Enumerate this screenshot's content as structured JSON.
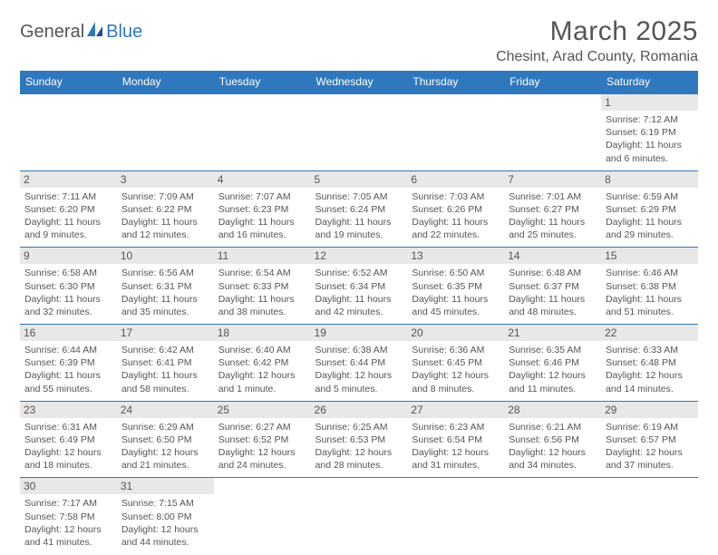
{
  "logo": {
    "part1": "General",
    "part2": "Blue"
  },
  "title": "March 2025",
  "location": "Chesint, Arad County, Romania",
  "colors": {
    "header_bg": "#2f78bd",
    "header_text": "#ffffff",
    "daynum_bg": "#e8e8e8",
    "border": "#2f78bd",
    "text": "#555555",
    "background": "#ffffff"
  },
  "weekdays": [
    "Sunday",
    "Monday",
    "Tuesday",
    "Wednesday",
    "Thursday",
    "Friday",
    "Saturday"
  ],
  "weeks": [
    [
      null,
      null,
      null,
      null,
      null,
      null,
      {
        "n": "1",
        "sr": "Sunrise: 7:12 AM",
        "ss": "Sunset: 6:19 PM",
        "dl": "Daylight: 11 hours and 6 minutes."
      }
    ],
    [
      {
        "n": "2",
        "sr": "Sunrise: 7:11 AM",
        "ss": "Sunset: 6:20 PM",
        "dl": "Daylight: 11 hours and 9 minutes."
      },
      {
        "n": "3",
        "sr": "Sunrise: 7:09 AM",
        "ss": "Sunset: 6:22 PM",
        "dl": "Daylight: 11 hours and 12 minutes."
      },
      {
        "n": "4",
        "sr": "Sunrise: 7:07 AM",
        "ss": "Sunset: 6:23 PM",
        "dl": "Daylight: 11 hours and 16 minutes."
      },
      {
        "n": "5",
        "sr": "Sunrise: 7:05 AM",
        "ss": "Sunset: 6:24 PM",
        "dl": "Daylight: 11 hours and 19 minutes."
      },
      {
        "n": "6",
        "sr": "Sunrise: 7:03 AM",
        "ss": "Sunset: 6:26 PM",
        "dl": "Daylight: 11 hours and 22 minutes."
      },
      {
        "n": "7",
        "sr": "Sunrise: 7:01 AM",
        "ss": "Sunset: 6:27 PM",
        "dl": "Daylight: 11 hours and 25 minutes."
      },
      {
        "n": "8",
        "sr": "Sunrise: 6:59 AM",
        "ss": "Sunset: 6:29 PM",
        "dl": "Daylight: 11 hours and 29 minutes."
      }
    ],
    [
      {
        "n": "9",
        "sr": "Sunrise: 6:58 AM",
        "ss": "Sunset: 6:30 PM",
        "dl": "Daylight: 11 hours and 32 minutes."
      },
      {
        "n": "10",
        "sr": "Sunrise: 6:56 AM",
        "ss": "Sunset: 6:31 PM",
        "dl": "Daylight: 11 hours and 35 minutes."
      },
      {
        "n": "11",
        "sr": "Sunrise: 6:54 AM",
        "ss": "Sunset: 6:33 PM",
        "dl": "Daylight: 11 hours and 38 minutes."
      },
      {
        "n": "12",
        "sr": "Sunrise: 6:52 AM",
        "ss": "Sunset: 6:34 PM",
        "dl": "Daylight: 11 hours and 42 minutes."
      },
      {
        "n": "13",
        "sr": "Sunrise: 6:50 AM",
        "ss": "Sunset: 6:35 PM",
        "dl": "Daylight: 11 hours and 45 minutes."
      },
      {
        "n": "14",
        "sr": "Sunrise: 6:48 AM",
        "ss": "Sunset: 6:37 PM",
        "dl": "Daylight: 11 hours and 48 minutes."
      },
      {
        "n": "15",
        "sr": "Sunrise: 6:46 AM",
        "ss": "Sunset: 6:38 PM",
        "dl": "Daylight: 11 hours and 51 minutes."
      }
    ],
    [
      {
        "n": "16",
        "sr": "Sunrise: 6:44 AM",
        "ss": "Sunset: 6:39 PM",
        "dl": "Daylight: 11 hours and 55 minutes."
      },
      {
        "n": "17",
        "sr": "Sunrise: 6:42 AM",
        "ss": "Sunset: 6:41 PM",
        "dl": "Daylight: 11 hours and 58 minutes."
      },
      {
        "n": "18",
        "sr": "Sunrise: 6:40 AM",
        "ss": "Sunset: 6:42 PM",
        "dl": "Daylight: 12 hours and 1 minute."
      },
      {
        "n": "19",
        "sr": "Sunrise: 6:38 AM",
        "ss": "Sunset: 6:44 PM",
        "dl": "Daylight: 12 hours and 5 minutes."
      },
      {
        "n": "20",
        "sr": "Sunrise: 6:36 AM",
        "ss": "Sunset: 6:45 PM",
        "dl": "Daylight: 12 hours and 8 minutes."
      },
      {
        "n": "21",
        "sr": "Sunrise: 6:35 AM",
        "ss": "Sunset: 6:46 PM",
        "dl": "Daylight: 12 hours and 11 minutes."
      },
      {
        "n": "22",
        "sr": "Sunrise: 6:33 AM",
        "ss": "Sunset: 6:48 PM",
        "dl": "Daylight: 12 hours and 14 minutes."
      }
    ],
    [
      {
        "n": "23",
        "sr": "Sunrise: 6:31 AM",
        "ss": "Sunset: 6:49 PM",
        "dl": "Daylight: 12 hours and 18 minutes."
      },
      {
        "n": "24",
        "sr": "Sunrise: 6:29 AM",
        "ss": "Sunset: 6:50 PM",
        "dl": "Daylight: 12 hours and 21 minutes."
      },
      {
        "n": "25",
        "sr": "Sunrise: 6:27 AM",
        "ss": "Sunset: 6:52 PM",
        "dl": "Daylight: 12 hours and 24 minutes."
      },
      {
        "n": "26",
        "sr": "Sunrise: 6:25 AM",
        "ss": "Sunset: 6:53 PM",
        "dl": "Daylight: 12 hours and 28 minutes."
      },
      {
        "n": "27",
        "sr": "Sunrise: 6:23 AM",
        "ss": "Sunset: 6:54 PM",
        "dl": "Daylight: 12 hours and 31 minutes."
      },
      {
        "n": "28",
        "sr": "Sunrise: 6:21 AM",
        "ss": "Sunset: 6:56 PM",
        "dl": "Daylight: 12 hours and 34 minutes."
      },
      {
        "n": "29",
        "sr": "Sunrise: 6:19 AM",
        "ss": "Sunset: 6:57 PM",
        "dl": "Daylight: 12 hours and 37 minutes."
      }
    ],
    [
      {
        "n": "30",
        "sr": "Sunrise: 7:17 AM",
        "ss": "Sunset: 7:58 PM",
        "dl": "Daylight: 12 hours and 41 minutes."
      },
      {
        "n": "31",
        "sr": "Sunrise: 7:15 AM",
        "ss": "Sunset: 8:00 PM",
        "dl": "Daylight: 12 hours and 44 minutes."
      },
      null,
      null,
      null,
      null,
      null
    ]
  ]
}
